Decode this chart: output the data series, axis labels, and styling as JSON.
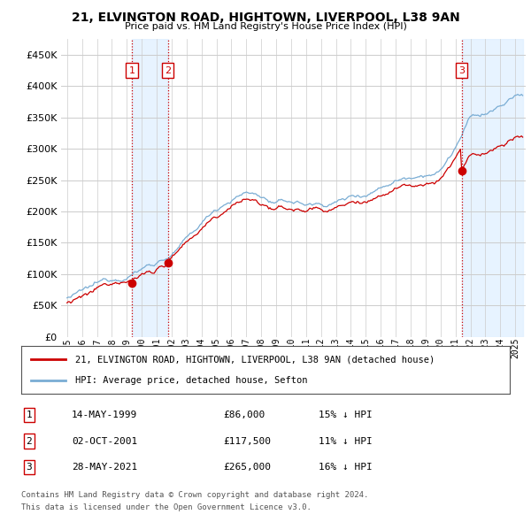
{
  "title": "21, ELVINGTON ROAD, HIGHTOWN, LIVERPOOL, L38 9AN",
  "subtitle": "Price paid vs. HM Land Registry's House Price Index (HPI)",
  "property_label": "21, ELVINGTON ROAD, HIGHTOWN, LIVERPOOL, L38 9AN (detached house)",
  "hpi_label": "HPI: Average price, detached house, Sefton",
  "sales": [
    {
      "num": 1,
      "date": "14-MAY-1999",
      "price": 86000,
      "pct": "15%",
      "dir": "↓"
    },
    {
      "num": 2,
      "date": "02-OCT-2001",
      "price": 117500,
      "pct": "11%",
      "dir": "↓"
    },
    {
      "num": 3,
      "date": "28-MAY-2021",
      "price": 265000,
      "pct": "16%",
      "dir": "↓"
    }
  ],
  "footnote1": "Contains HM Land Registry data © Crown copyright and database right 2024.",
  "footnote2": "This data is licensed under the Open Government Licence v3.0.",
  "ylim": [
    0,
    475000
  ],
  "yticks": [
    0,
    50000,
    100000,
    150000,
    200000,
    250000,
    300000,
    350000,
    400000,
    450000
  ],
  "property_color": "#cc0000",
  "hpi_color": "#7aadd4",
  "sale_marker_color": "#cc0000",
  "vline_color": "#cc0000",
  "shade_color": "#ddeeff",
  "background_color": "#ffffff",
  "grid_color": "#cccccc",
  "sale_dates_float": [
    1999.333,
    2001.75,
    2021.416
  ],
  "sale_prices": [
    86000,
    117500,
    265000
  ],
  "hpi_key_years": [
    1995,
    1996,
    1997,
    1998,
    1999,
    2000,
    2001,
    2002,
    2003,
    2004,
    2005,
    2006,
    2007,
    2008,
    2009,
    2010,
    2011,
    2012,
    2013,
    2014,
    2015,
    2016,
    2017,
    2018,
    2019,
    2020,
    2021,
    2022,
    2023,
    2024,
    2025
  ],
  "hpi_key_values": [
    62000,
    68000,
    76000,
    84000,
    95000,
    108000,
    120000,
    132000,
    152000,
    175000,
    200000,
    218000,
    228000,
    222000,
    208000,
    210000,
    205000,
    205000,
    210000,
    218000,
    225000,
    238000,
    252000,
    260000,
    270000,
    275000,
    312000,
    355000,
    360000,
    370000,
    385000
  ]
}
